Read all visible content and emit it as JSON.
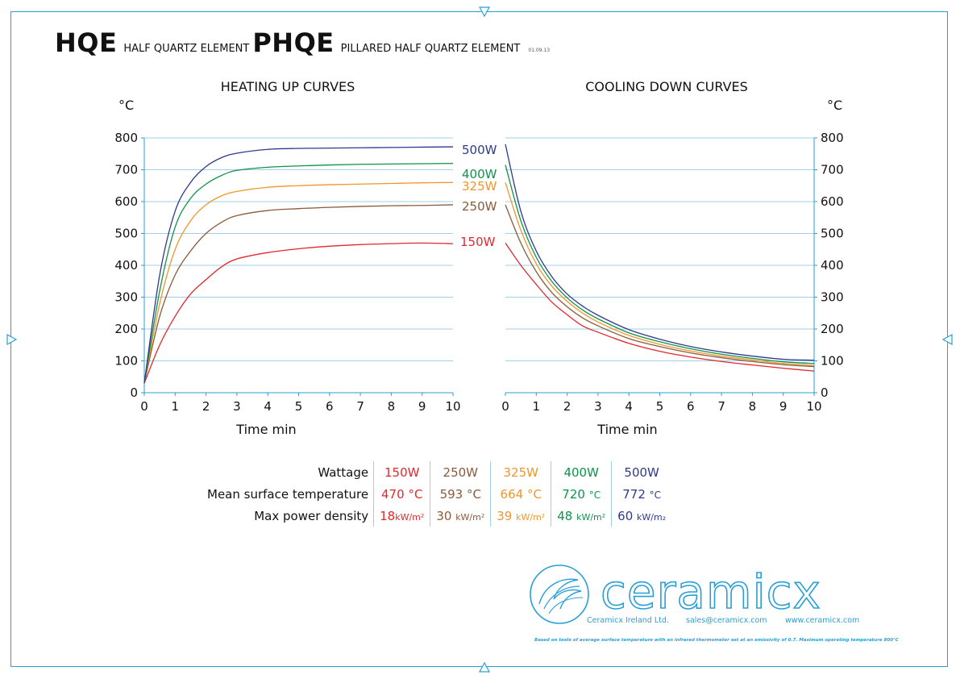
{
  "header": {
    "code1": "HQE",
    "name1": "HALF QUARTZ ELEMENT",
    "code2": "PHQE",
    "name2": "PILLARED HALF QUARTZ ELEMENT",
    "date": "01.09.13"
  },
  "colors": {
    "frame": "#2a9fd6",
    "grid": "#9fd0e8",
    "w150": "#e0282e",
    "w250": "#8a5a3c",
    "w325": "#f0962a",
    "w400": "#10924a",
    "w500": "#2e3a8c"
  },
  "chart_data": [
    {
      "type": "line",
      "title": "HEATING UP CURVES",
      "xlabel": "Time min",
      "ylabel": "°C",
      "xlim": [
        0,
        10
      ],
      "ylim": [
        0,
        800
      ],
      "xticks": [
        "0",
        "1",
        "2",
        "3",
        "4",
        "5",
        "6",
        "7",
        "8",
        "9",
        "10"
      ],
      "yticks": [
        "0",
        "100",
        "200",
        "300",
        "400",
        "500",
        "600",
        "700",
        "800"
      ],
      "grid": "horizontal",
      "series": [
        {
          "name": "150W",
          "color": "#e0282e",
          "points": [
            [
              0,
              30
            ],
            [
              0.5,
              150
            ],
            [
              1,
              240
            ],
            [
              1.5,
              310
            ],
            [
              2,
              355
            ],
            [
              2.5,
              395
            ],
            [
              3,
              420
            ],
            [
              4,
              440
            ],
            [
              5,
              452
            ],
            [
              6,
              460
            ],
            [
              7,
              465
            ],
            [
              8,
              468
            ],
            [
              9,
              470
            ],
            [
              10,
              468
            ]
          ]
        },
        {
          "name": "250W",
          "color": "#8a5a3c",
          "points": [
            [
              0,
              30
            ],
            [
              0.5,
              240
            ],
            [
              1,
              370
            ],
            [
              1.5,
              445
            ],
            [
              2,
              500
            ],
            [
              2.5,
              535
            ],
            [
              3,
              556
            ],
            [
              4,
              572
            ],
            [
              5,
              578
            ],
            [
              6,
              582
            ],
            [
              7,
              585
            ],
            [
              8,
              587
            ],
            [
              9,
              588
            ],
            [
              10,
              590
            ]
          ]
        },
        {
          "name": "325W",
          "color": "#f0962a",
          "points": [
            [
              0,
              30
            ],
            [
              0.5,
              280
            ],
            [
              1,
              450
            ],
            [
              1.5,
              540
            ],
            [
              2,
              590
            ],
            [
              2.5,
              618
            ],
            [
              3,
              632
            ],
            [
              4,
              645
            ],
            [
              5,
              650
            ],
            [
              6,
              653
            ],
            [
              7,
              655
            ],
            [
              8,
              657
            ],
            [
              9,
              659
            ],
            [
              10,
              660
            ]
          ]
        },
        {
          "name": "400W",
          "color": "#10924a",
          "points": [
            [
              0,
              30
            ],
            [
              0.5,
              320
            ],
            [
              1,
              520
            ],
            [
              1.5,
              610
            ],
            [
              2,
              655
            ],
            [
              2.5,
              682
            ],
            [
              3,
              698
            ],
            [
              4,
              708
            ],
            [
              5,
              712
            ],
            [
              6,
              715
            ],
            [
              7,
              717
            ],
            [
              8,
              718
            ],
            [
              9,
              719
            ],
            [
              10,
              720
            ]
          ]
        },
        {
          "name": "500W",
          "color": "#2e3a8c",
          "points": [
            [
              0,
              30
            ],
            [
              0.5,
              370
            ],
            [
              1,
              570
            ],
            [
              1.5,
              660
            ],
            [
              2,
              710
            ],
            [
              2.5,
              738
            ],
            [
              3,
              752
            ],
            [
              4,
              764
            ],
            [
              5,
              767
            ],
            [
              6,
              768
            ],
            [
              7,
              769
            ],
            [
              8,
              770
            ],
            [
              9,
              771
            ],
            [
              10,
              772
            ]
          ]
        }
      ]
    },
    {
      "type": "line",
      "title": "COOLING DOWN CURVES",
      "xlabel": "Time min",
      "ylabel": "°C",
      "xlim": [
        0,
        10
      ],
      "ylim": [
        0,
        800
      ],
      "xticks": [
        "0",
        "1",
        "2",
        "3",
        "4",
        "5",
        "6",
        "7",
        "8",
        "9",
        "10"
      ],
      "yticks": [
        "0",
        "100",
        "200",
        "300",
        "400",
        "500",
        "600",
        "700",
        "800"
      ],
      "grid": "horizontal",
      "series": [
        {
          "name": "150W",
          "color": "#e0282e",
          "points": [
            [
              0,
              470
            ],
            [
              0.5,
              400
            ],
            [
              1,
              340
            ],
            [
              1.5,
              285
            ],
            [
              2,
              245
            ],
            [
              2.5,
              210
            ],
            [
              3,
              190
            ],
            [
              4,
              155
            ],
            [
              5,
              130
            ],
            [
              6,
              112
            ],
            [
              7,
              98
            ],
            [
              8,
              87
            ],
            [
              9,
              77
            ],
            [
              10,
              68
            ]
          ]
        },
        {
          "name": "250W",
          "color": "#8a5a3c",
          "points": [
            [
              0,
              590
            ],
            [
              0.5,
              470
            ],
            [
              1,
              380
            ],
            [
              1.5,
              315
            ],
            [
              2,
              270
            ],
            [
              2.5,
              235
            ],
            [
              3,
              210
            ],
            [
              4,
              170
            ],
            [
              5,
              145
            ],
            [
              6,
              125
            ],
            [
              7,
              110
            ],
            [
              8,
              98
            ],
            [
              9,
              88
            ],
            [
              10,
              82
            ]
          ]
        },
        {
          "name": "325W",
          "color": "#f0962a",
          "points": [
            [
              0,
              660
            ],
            [
              0.5,
              510
            ],
            [
              1,
              405
            ],
            [
              1.5,
              335
            ],
            [
              2,
              287
            ],
            [
              2.5,
              250
            ],
            [
              3,
              222
            ],
            [
              4,
              180
            ],
            [
              5,
              152
            ],
            [
              6,
              131
            ],
            [
              7,
              115
            ],
            [
              8,
              103
            ],
            [
              9,
              92
            ],
            [
              10,
              86
            ]
          ]
        },
        {
          "name": "400W",
          "color": "#10924a",
          "points": [
            [
              0,
              715
            ],
            [
              0.5,
              540
            ],
            [
              1,
              425
            ],
            [
              1.5,
              350
            ],
            [
              2,
              298
            ],
            [
              2.5,
              260
            ],
            [
              3,
              232
            ],
            [
              4,
              188
            ],
            [
              5,
              160
            ],
            [
              6,
              138
            ],
            [
              7,
              121
            ],
            [
              8,
              108
            ],
            [
              9,
              97
            ],
            [
              10,
              92
            ]
          ]
        },
        {
          "name": "500W",
          "color": "#2e3a8c",
          "points": [
            [
              0,
              780
            ],
            [
              0.5,
              570
            ],
            [
              1,
              445
            ],
            [
              1.5,
              365
            ],
            [
              2,
              310
            ],
            [
              2.5,
              272
            ],
            [
              3,
              243
            ],
            [
              4,
              198
            ],
            [
              5,
              168
            ],
            [
              6,
              145
            ],
            [
              7,
              128
            ],
            [
              8,
              115
            ],
            [
              9,
              105
            ],
            [
              10,
              102
            ]
          ]
        }
      ]
    }
  ],
  "legend": [
    {
      "label": "500W",
      "color": "#2e3a8c"
    },
    {
      "label": "400W",
      "color": "#10924a"
    },
    {
      "label": "325W",
      "color": "#f0962a"
    },
    {
      "label": "250W",
      "color": "#8a5a3c"
    },
    {
      "label": "150W",
      "color": "#e0282e"
    }
  ],
  "table": {
    "wattage_label": "Wattage",
    "temp_label": "Mean surface temperature",
    "density_label": "Max power density",
    "columns": [
      {
        "color": "#e0282e",
        "wattage": "150W",
        "temp_value": "470",
        "temp_unit": "°C",
        "density_value": "18",
        "density_unit": "kW/m²"
      },
      {
        "color": "#8a5a3c",
        "wattage": "250W",
        "temp_value": "593",
        "temp_unit": "°C",
        "density_value": "30",
        "density_unit": "kW/m²"
      },
      {
        "color": "#f0962a",
        "wattage": "325W",
        "temp_value": "664",
        "temp_unit": "°C",
        "density_value": "39",
        "density_unit": "kW/m²"
      },
      {
        "color": "#10924a",
        "wattage": "400W",
        "temp_value": "720",
        "temp_unit": "°C",
        "density_value": "48",
        "density_unit": "kW/m²"
      },
      {
        "color": "#2e3a8c",
        "wattage": "500W",
        "temp_value": "772",
        "temp_unit": "°C",
        "density_value": "60",
        "density_unit": "kW/m₂"
      }
    ]
  },
  "brand": {
    "logo_text": "ceramicx",
    "company": "Ceramicx Ireland Ltd.",
    "email": "sales@ceramicx.com",
    "web": "www.ceramicx.com",
    "footnote": "Based on tests of average surface temperature with an infrared thermometer set at an emissivity of 0.7. Maximum operating temperature 800°C"
  }
}
